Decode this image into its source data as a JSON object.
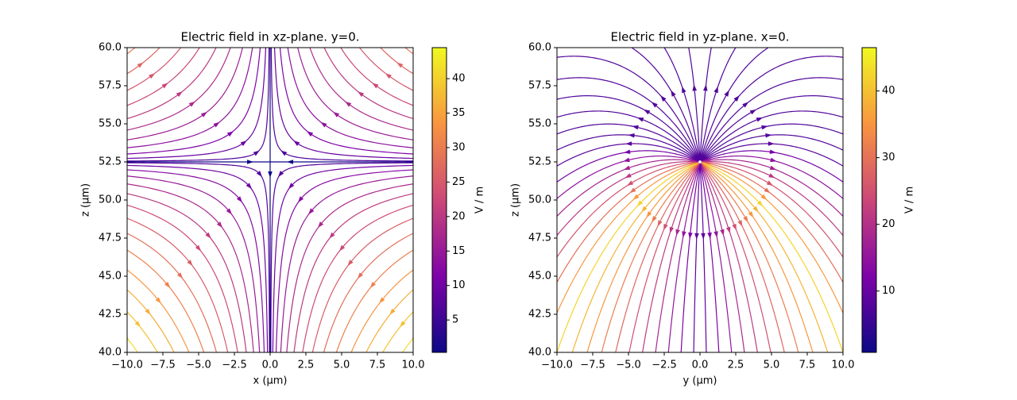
{
  "chart_data": [
    {
      "type": "streamplot",
      "title": "Electric field in xz-plane. y=0.",
      "x_label": "x (µm)",
      "y_label": "z (µm)",
      "xlim": [
        -10,
        10
      ],
      "ylim": [
        40,
        60
      ],
      "xticks": [
        {
          "value": -10,
          "label": "−10.0"
        },
        {
          "value": -7.5,
          "label": "−7.5"
        },
        {
          "value": -5,
          "label": "−5.0"
        },
        {
          "value": -2.5,
          "label": "−2.5"
        },
        {
          "value": 0,
          "label": "0.0"
        },
        {
          "value": 2.5,
          "label": "2.5"
        },
        {
          "value": 5,
          "label": "5.0"
        },
        {
          "value": 7.5,
          "label": "7.5"
        },
        {
          "value": 10,
          "label": "10.0"
        }
      ],
      "yticks": [
        {
          "value": 40,
          "label": "40.0"
        },
        {
          "value": 42.5,
          "label": "42.5"
        },
        {
          "value": 45,
          "label": "45.0"
        },
        {
          "value": 47.5,
          "label": "47.5"
        },
        {
          "value": 50,
          "label": "50.0"
        },
        {
          "value": 52.5,
          "label": "52.5"
        },
        {
          "value": 55,
          "label": "55.0"
        },
        {
          "value": 57.5,
          "label": "57.5"
        },
        {
          "value": 60,
          "label": "60.0"
        }
      ],
      "field": "saddle",
      "cmap": "plasma",
      "colorbar": {
        "label": "V / m",
        "lim": [
          0.3,
          44.5
        ],
        "ticks": [
          5,
          10,
          15,
          20,
          25,
          30,
          35,
          40
        ]
      }
    },
    {
      "type": "streamplot",
      "title": "Electric field in yz-plane. x=0.",
      "x_label": "y (µm)",
      "y_label": "z (µm)",
      "xlim": [
        -10,
        10
      ],
      "ylim": [
        40,
        60
      ],
      "xticks": [
        {
          "value": -10,
          "label": "−10.0"
        },
        {
          "value": -7.5,
          "label": "−7.5"
        },
        {
          "value": -5,
          "label": "−5.0"
        },
        {
          "value": -2.5,
          "label": "−2.5"
        },
        {
          "value": 0,
          "label": "0.0"
        },
        {
          "value": 2.5,
          "label": "2.5"
        },
        {
          "value": 5,
          "label": "5.0"
        },
        {
          "value": 7.5,
          "label": "7.5"
        },
        {
          "value": 10,
          "label": "10.0"
        }
      ],
      "yticks": [
        {
          "value": 40,
          "label": "40.0"
        },
        {
          "value": 42.5,
          "label": "42.5"
        },
        {
          "value": 45,
          "label": "45.0"
        },
        {
          "value": 47.5,
          "label": "47.5"
        },
        {
          "value": 50,
          "label": "50.0"
        },
        {
          "value": 52.5,
          "label": "52.5"
        },
        {
          "value": 55,
          "label": "55.0"
        },
        {
          "value": 57.5,
          "label": "57.5"
        },
        {
          "value": 60,
          "label": "60.0"
        }
      ],
      "field": "source",
      "cmap": "plasma",
      "colorbar": {
        "label": "V / m",
        "lim": [
          0.8,
          46.5
        ],
        "ticks": [
          10,
          20,
          30,
          40
        ]
      }
    }
  ]
}
